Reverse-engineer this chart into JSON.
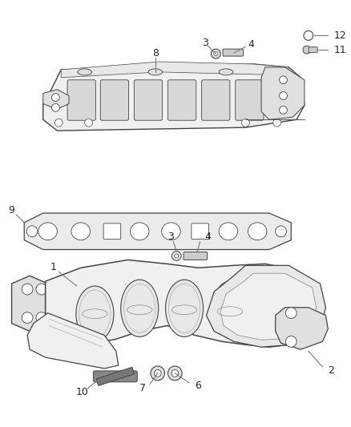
{
  "background_color": "#ffffff",
  "fig_width": 4.38,
  "fig_height": 5.33,
  "dpi": 100,
  "line_color": "#444444",
  "text_color": "#222222",
  "leader_color": "#777777",
  "fill_light": "#f0f0f0",
  "fill_mid": "#e0e0e0",
  "fill_dark": "#cccccc"
}
